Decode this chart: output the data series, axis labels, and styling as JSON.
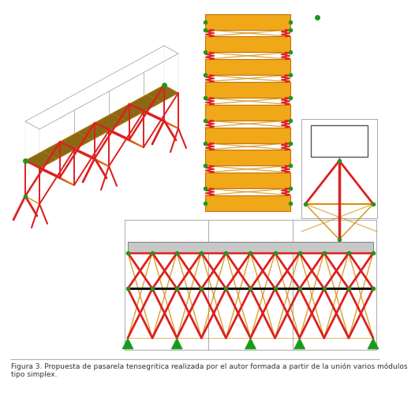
{
  "background_color": "#ffffff",
  "caption_line1": "Figura 3. Propuesta de pasarela tensegritica realizada por el autor formada a partir de la unión varios módulos",
  "caption_line2": "tipo simplex.",
  "caption_fontsize": 6.5,
  "caption_color": "#333333",
  "fig_width": 4.74,
  "fig_height": 4.9,
  "red": "#dd2020",
  "orange": "#d4900a",
  "green": "#1a9a1a",
  "brown": "#8B6914",
  "panel_orange": "#f0a818"
}
